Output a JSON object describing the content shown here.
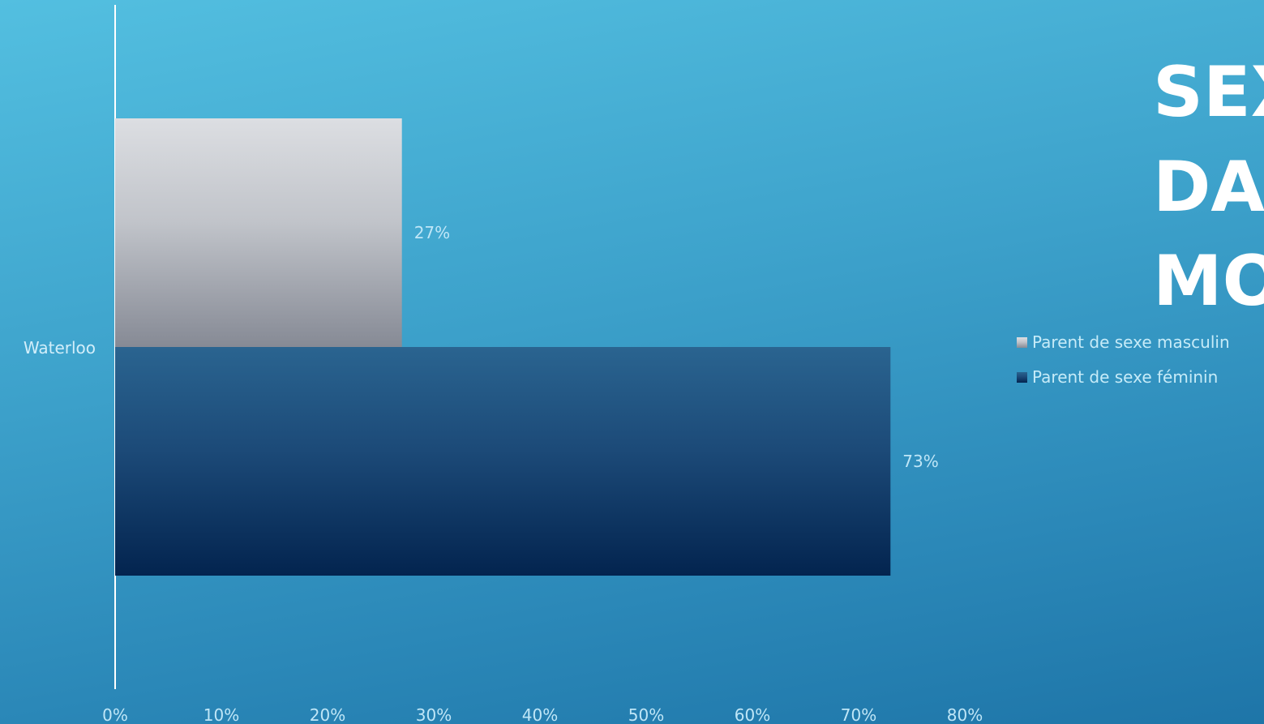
{
  "title_lines": [
    "SEX",
    "DA",
    "MO"
  ],
  "chart_data": {
    "type": "bar",
    "orientation": "horizontal",
    "categories": [
      "Waterloo"
    ],
    "series": [
      {
        "name": "Parent de sexe masculin",
        "values": [
          0.27
        ],
        "label": "27%",
        "color": "#b9bcc4"
      },
      {
        "name": "Parent de sexe féminin",
        "values": [
          0.73
        ],
        "label": "73%",
        "color": "#1d4672"
      }
    ],
    "xlim": [
      0,
      0.8
    ],
    "xticks": [
      "0%",
      "10%",
      "20%",
      "30%",
      "40%",
      "50%",
      "60%",
      "70%",
      "80%"
    ],
    "legend_position": "right",
    "grid": false
  }
}
